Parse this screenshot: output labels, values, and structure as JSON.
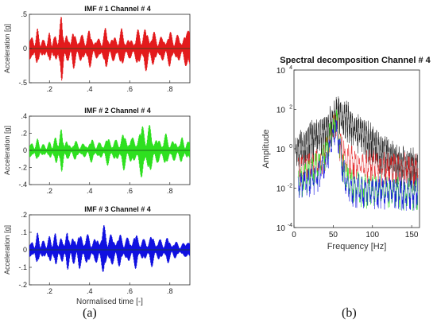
{
  "figure": {
    "label_a": "(a)",
    "label_b": "(b)"
  },
  "chart_data": [
    {
      "type": "line",
      "title": "IMF # 1 Channel # 4",
      "xlabel": "",
      "ylabel": "Acceleration [g]",
      "xlim": [
        0.1,
        0.9
      ],
      "ylim": [
        -0.5,
        0.5
      ],
      "xticks": [
        0.2,
        0.4,
        0.6,
        0.8
      ],
      "yticks": [
        -0.5,
        0,
        0.5
      ],
      "series": [
        {
          "color": "#e31a1c",
          "envelope_peaks": [
            [
              0.11,
              0.16
            ],
            [
              0.14,
              0.3
            ],
            [
              0.17,
              0.12
            ],
            [
              0.2,
              0.24
            ],
            [
              0.225,
              0.16
            ],
            [
              0.26,
              0.53
            ],
            [
              0.29,
              0.18
            ],
            [
              0.32,
              0.3
            ],
            [
              0.36,
              0.2
            ],
            [
              0.4,
              0.3
            ],
            [
              0.44,
              0.14
            ],
            [
              0.48,
              0.32
            ],
            [
              0.52,
              0.18
            ],
            [
              0.56,
              0.3
            ],
            [
              0.6,
              0.14
            ],
            [
              0.64,
              0.28
            ],
            [
              0.68,
              0.34
            ],
            [
              0.72,
              0.26
            ],
            [
              0.76,
              0.18
            ],
            [
              0.8,
              0.28
            ],
            [
              0.84,
              0.2
            ],
            [
              0.88,
              0.26
            ]
          ]
        }
      ]
    },
    {
      "type": "line",
      "title": "IMF # 2 Channel # 4",
      "xlabel": "",
      "ylabel": "Acceleration [g]",
      "xlim": [
        0.1,
        0.9
      ],
      "ylim": [
        -0.4,
        0.4
      ],
      "xticks": [
        0.2,
        0.4,
        0.6,
        0.8
      ],
      "yticks": [
        -0.4,
        -0.2,
        0,
        0.2,
        0.4
      ],
      "series": [
        {
          "color": "#2ee01f",
          "envelope_peaks": [
            [
              0.11,
              0.08
            ],
            [
              0.14,
              0.14
            ],
            [
              0.17,
              0.07
            ],
            [
              0.2,
              0.1
            ],
            [
              0.23,
              0.16
            ],
            [
              0.26,
              0.28
            ],
            [
              0.29,
              0.1
            ],
            [
              0.33,
              0.12
            ],
            [
              0.37,
              0.08
            ],
            [
              0.41,
              0.15
            ],
            [
              0.45,
              0.09
            ],
            [
              0.49,
              0.18
            ],
            [
              0.53,
              0.12
            ],
            [
              0.57,
              0.24
            ],
            [
              0.61,
              0.14
            ],
            [
              0.66,
              0.33
            ],
            [
              0.7,
              0.3
            ],
            [
              0.74,
              0.14
            ],
            [
              0.78,
              0.2
            ],
            [
              0.82,
              0.12
            ],
            [
              0.86,
              0.16
            ],
            [
              0.89,
              0.1
            ]
          ]
        }
      ]
    },
    {
      "type": "line",
      "title": "IMF # 3 Channel # 4",
      "xlabel": "Normalised time [-]",
      "ylabel": "Acceleration [g]",
      "xlim": [
        0.1,
        0.9
      ],
      "ylim": [
        -0.2,
        0.2
      ],
      "xticks": [
        0.2,
        0.4,
        0.6,
        0.8
      ],
      "yticks": [
        -0.2,
        -0.1,
        0,
        0.1,
        0.2
      ],
      "series": [
        {
          "color": "#1010e0",
          "envelope_peaks": [
            [
              0.11,
              0.04
            ],
            [
              0.14,
              0.1
            ],
            [
              0.17,
              0.05
            ],
            [
              0.2,
              0.08
            ],
            [
              0.23,
              0.1
            ],
            [
              0.26,
              0.07
            ],
            [
              0.29,
              0.12
            ],
            [
              0.32,
              0.08
            ],
            [
              0.35,
              0.11
            ],
            [
              0.39,
              0.09
            ],
            [
              0.43,
              0.07
            ],
            [
              0.47,
              0.15
            ],
            [
              0.51,
              0.09
            ],
            [
              0.55,
              0.1
            ],
            [
              0.59,
              0.07
            ],
            [
              0.63,
              0.11
            ],
            [
              0.67,
              0.06
            ],
            [
              0.71,
              0.1
            ],
            [
              0.75,
              0.06
            ],
            [
              0.79,
              0.08
            ],
            [
              0.83,
              0.05
            ],
            [
              0.87,
              0.04
            ]
          ]
        }
      ]
    },
    {
      "type": "line",
      "title": "Spectral decomposition Channel # 4",
      "xlabel": "Frequency [Hz]",
      "ylabel": "Amplitude",
      "xlim": [
        0,
        160
      ],
      "ylim": [
        0.0001,
        10000
      ],
      "yscale": "log",
      "xticks": [
        0,
        50,
        100,
        150
      ],
      "yticks": [
        0.0001,
        0.01,
        1,
        100,
        10000
      ],
      "ytick_labels": [
        {
          "base": "10",
          "exp": "-4"
        },
        {
          "base": "10",
          "exp": "-2"
        },
        {
          "base": "10",
          "exp": "0"
        },
        {
          "base": "10",
          "exp": "2"
        },
        {
          "base": "10",
          "exp": "4"
        }
      ],
      "series": [
        {
          "color": "#111111",
          "points": [
            [
              2,
              1.2
            ],
            [
              8,
              3
            ],
            [
              15,
              5
            ],
            [
              22,
              8
            ],
            [
              30,
              12
            ],
            [
              36,
              15
            ],
            [
              42,
              25
            ],
            [
              48,
              60
            ],
            [
              52,
              120
            ],
            [
              55,
              200
            ],
            [
              58,
              110
            ],
            [
              62,
              70
            ],
            [
              65,
              110
            ],
            [
              68,
              90
            ],
            [
              72,
              40
            ],
            [
              80,
              20
            ],
            [
              90,
              12
            ],
            [
              100,
              5
            ],
            [
              110,
              2
            ],
            [
              120,
              1.2
            ],
            [
              130,
              0.6
            ],
            [
              140,
              0.4
            ],
            [
              150,
              0.35
            ],
            [
              158,
              0.3
            ]
          ]
        },
        {
          "color": "#e31a1c",
          "points": [
            [
              5,
              0.2
            ],
            [
              15,
              0.3
            ],
            [
              25,
              0.4
            ],
            [
              35,
              0.5
            ],
            [
              42,
              2
            ],
            [
              48,
              15
            ],
            [
              53,
              60
            ],
            [
              56,
              20
            ],
            [
              60,
              2
            ],
            [
              66,
              0.8
            ],
            [
              75,
              0.5
            ],
            [
              90,
              0.35
            ],
            [
              110,
              0.28
            ],
            [
              130,
              0.25
            ],
            [
              158,
              0.22
            ]
          ]
        },
        {
          "color": "#2ee01f",
          "points": [
            [
              5,
              0.05
            ],
            [
              15,
              0.1
            ],
            [
              25,
              0.2
            ],
            [
              35,
              0.5
            ],
            [
              42,
              3
            ],
            [
              48,
              20
            ],
            [
              54,
              80
            ],
            [
              57,
              15
            ],
            [
              61,
              0.5
            ],
            [
              66,
              0.08
            ],
            [
              75,
              0.03
            ],
            [
              90,
              0.02
            ],
            [
              110,
              0.018
            ],
            [
              130,
              0.016
            ],
            [
              158,
              0.015
            ]
          ]
        },
        {
          "color": "#1010e0",
          "points": [
            [
              5,
              0.03
            ],
            [
              15,
              0.05
            ],
            [
              25,
              0.08
            ],
            [
              35,
              0.2
            ],
            [
              42,
              0.8
            ],
            [
              48,
              4
            ],
            [
              53,
              30
            ],
            [
              57,
              8
            ],
            [
              61,
              0.3
            ],
            [
              66,
              0.05
            ],
            [
              72,
              0.025
            ],
            [
              85,
              0.02
            ],
            [
              100,
              0.018
            ],
            [
              120,
              0.016
            ],
            [
              140,
              0.015
            ],
            [
              158,
              0.014
            ]
          ]
        }
      ]
    }
  ]
}
